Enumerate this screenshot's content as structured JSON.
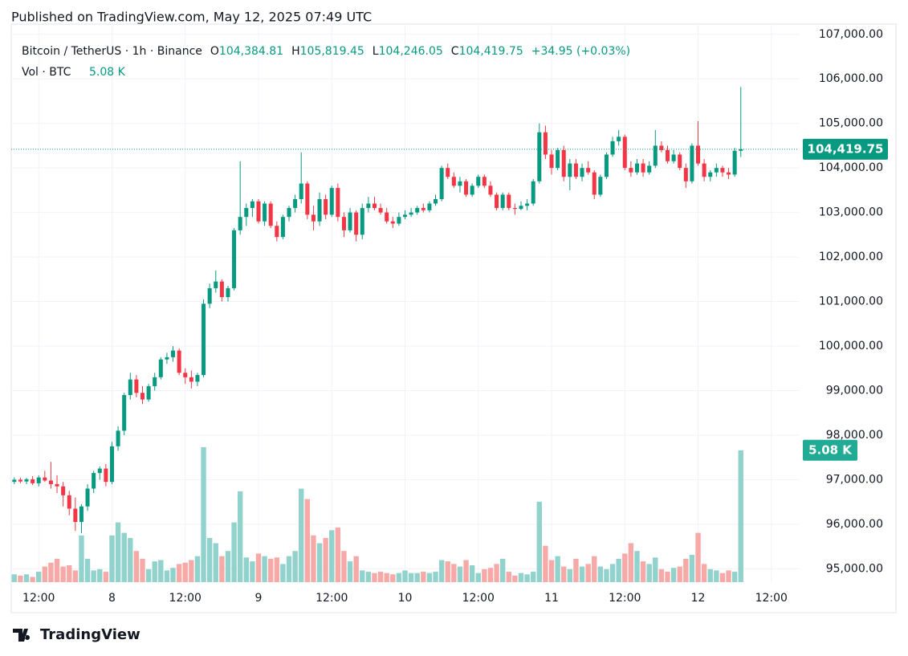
{
  "header": {
    "published": "Published on TradingView.com, May 12, 2025 07:49 UTC",
    "symbol": "Bitcoin / TetherUS · 1h · Binance",
    "fields": [
      {
        "key": "O",
        "value": "104,384.81"
      },
      {
        "key": "H",
        "value": "105,819.45"
      },
      {
        "key": "L",
        "value": "104,246.05"
      },
      {
        "key": "C",
        "value": "104,419.75"
      }
    ],
    "change": "+34.95 (+0.03%)",
    "volume_title": "Vol · BTC",
    "brand": "TradingView"
  },
  "chart_data": {
    "type": "candlestick",
    "up_color": "#089981",
    "down_color": "#f23645",
    "volume_up_color": "#92d2cc",
    "volume_down_color": "#f7a9a7",
    "grid": true,
    "xlim": [
      -0.5,
      128.5
    ],
    "xticks": [
      {
        "value": 4,
        "label": "12:00"
      },
      {
        "value": 16,
        "label": "8"
      },
      {
        "value": 28,
        "label": "12:00"
      },
      {
        "value": 40,
        "label": "9"
      },
      {
        "value": 52,
        "label": "12:00"
      },
      {
        "value": 64,
        "label": "10"
      },
      {
        "value": 76,
        "label": "12:00"
      },
      {
        "value": 88,
        "label": "11"
      },
      {
        "value": 100,
        "label": "12:00"
      },
      {
        "value": 112,
        "label": "12"
      },
      {
        "value": 124,
        "label": "12:00"
      }
    ],
    "ylim": [
      94700,
      107230
    ],
    "yticks": [
      {
        "value": 95000,
        "label": "95,000.00"
      },
      {
        "value": 96000,
        "label": "96,000.00"
      },
      {
        "value": 97000,
        "label": "97,000.00"
      },
      {
        "value": 98000,
        "label": "98,000.00"
      },
      {
        "value": 99000,
        "label": "99,000.00"
      },
      {
        "value": 100000,
        "label": "100,000.00"
      },
      {
        "value": 101000,
        "label": "101,000.00"
      },
      {
        "value": 102000,
        "label": "102,000.00"
      },
      {
        "value": 103000,
        "label": "103,000.00"
      },
      {
        "value": 104000,
        "label": "104,000.00"
      },
      {
        "value": 105000,
        "label": "105,000.00"
      },
      {
        "value": 106000,
        "label": "106,000.00"
      },
      {
        "value": 107000,
        "label": "107,000.00"
      }
    ],
    "y2lim": [
      0,
      21500
    ],
    "last_price": {
      "value": 104419.75,
      "label": "104,419.75"
    },
    "volume_label": {
      "value": 5080,
      "label": "5.08 K"
    },
    "ohlc": [
      [
        96950,
        97050,
        96900,
        97000
      ],
      [
        97000,
        97050,
        96920,
        96960
      ],
      [
        96960,
        97040,
        96900,
        97010
      ],
      [
        97010,
        97080,
        96880,
        96920
      ],
      [
        96920,
        97100,
        96850,
        97050
      ],
      [
        97050,
        97200,
        96950,
        96980
      ],
      [
        96980,
        97400,
        96800,
        96900
      ],
      [
        96900,
        97100,
        96700,
        96850
      ],
      [
        96850,
        96950,
        96400,
        96650
      ],
      [
        96650,
        96750,
        96200,
        96350
      ],
      [
        96350,
        96600,
        95850,
        96050
      ],
      [
        96050,
        96450,
        95800,
        96400
      ],
      [
        96400,
        96900,
        96300,
        96800
      ],
      [
        96800,
        97200,
        96700,
        97150
      ],
      [
        97150,
        97300,
        97000,
        97250
      ],
      [
        97250,
        97350,
        96850,
        96950
      ],
      [
        96950,
        97850,
        96900,
        97750
      ],
      [
        97750,
        98200,
        97650,
        98100
      ],
      [
        98100,
        98950,
        98000,
        98900
      ],
      [
        98900,
        99400,
        98800,
        99250
      ],
      [
        99250,
        99350,
        98850,
        98950
      ],
      [
        98950,
        99100,
        98700,
        98800
      ],
      [
        98800,
        99150,
        98750,
        99100
      ],
      [
        99100,
        99400,
        99000,
        99300
      ],
      [
        99300,
        99750,
        99250,
        99700
      ],
      [
        99700,
        99850,
        99600,
        99750
      ],
      [
        99750,
        100000,
        99650,
        99900
      ],
      [
        99900,
        99950,
        99350,
        99400
      ],
      [
        99400,
        99500,
        99150,
        99300
      ],
      [
        99300,
        99450,
        99050,
        99200
      ],
      [
        99200,
        99400,
        99100,
        99350
      ],
      [
        99350,
        101050,
        99300,
        100950
      ],
      [
        100950,
        101400,
        100850,
        101300
      ],
      [
        101300,
        101700,
        101200,
        101450
      ],
      [
        101450,
        101500,
        101000,
        101100
      ],
      [
        101100,
        101350,
        101000,
        101300
      ],
      [
        101300,
        102650,
        101250,
        102600
      ],
      [
        102600,
        104150,
        102500,
        102900
      ],
      [
        102900,
        103200,
        102700,
        103100
      ],
      [
        103100,
        103300,
        102900,
        103250
      ],
      [
        103250,
        103300,
        102750,
        102800
      ],
      [
        102800,
        103250,
        102700,
        103200
      ],
      [
        103200,
        103250,
        102650,
        102700
      ],
      [
        102700,
        102800,
        102350,
        102450
      ],
      [
        102450,
        102950,
        102400,
        102900
      ],
      [
        102900,
        103150,
        102800,
        103100
      ],
      [
        103100,
        103400,
        103000,
        103300
      ],
      [
        103300,
        104350,
        103200,
        103650
      ],
      [
        103650,
        103700,
        102850,
        102950
      ],
      [
        102950,
        103150,
        102600,
        102800
      ],
      [
        102800,
        103450,
        102700,
        103300
      ],
      [
        103300,
        103400,
        102850,
        102950
      ],
      [
        102950,
        103600,
        102900,
        103550
      ],
      [
        103550,
        103650,
        102800,
        102900
      ],
      [
        102900,
        103000,
        102450,
        102600
      ],
      [
        102600,
        103100,
        102550,
        103000
      ],
      [
        103000,
        103050,
        102350,
        102500
      ],
      [
        102500,
        103200,
        102400,
        103100
      ],
      [
        103100,
        103350,
        103000,
        103200
      ],
      [
        103200,
        103350,
        103050,
        103100
      ],
      [
        103100,
        103200,
        102950,
        103000
      ],
      [
        103000,
        103100,
        102750,
        102800
      ],
      [
        102800,
        102900,
        102650,
        102750
      ],
      [
        102750,
        103000,
        102700,
        102900
      ],
      [
        102900,
        103050,
        102850,
        102950
      ],
      [
        102950,
        103100,
        102900,
        103000
      ],
      [
        103000,
        103150,
        102950,
        103100
      ],
      [
        103100,
        103200,
        103000,
        103050
      ],
      [
        103050,
        103250,
        103000,
        103200
      ],
      [
        103200,
        103400,
        103150,
        103300
      ],
      [
        103300,
        104050,
        103250,
        104000
      ],
      [
        104000,
        104100,
        103750,
        103800
      ],
      [
        103800,
        103900,
        103550,
        103600
      ],
      [
        103600,
        103800,
        103450,
        103700
      ],
      [
        103700,
        103750,
        103350,
        103400
      ],
      [
        103400,
        103650,
        103350,
        103600
      ],
      [
        103600,
        103850,
        103550,
        103800
      ],
      [
        103800,
        103850,
        103550,
        103600
      ],
      [
        103600,
        103700,
        103350,
        103400
      ],
      [
        103400,
        103450,
        103050,
        103100
      ],
      [
        103100,
        103450,
        103050,
        103400
      ],
      [
        103400,
        103450,
        103050,
        103100
      ],
      [
        103100,
        103200,
        102950,
        103080
      ],
      [
        103080,
        103250,
        103050,
        103150
      ],
      [
        103150,
        103300,
        103050,
        103200
      ],
      [
        103200,
        103750,
        103150,
        103700
      ],
      [
        103700,
        105000,
        103650,
        104800
      ],
      [
        104800,
        104950,
        104200,
        104300
      ],
      [
        104300,
        104400,
        103850,
        104000
      ],
      [
        104000,
        104450,
        103950,
        104400
      ],
      [
        104400,
        104500,
        103700,
        103800
      ],
      [
        103800,
        104200,
        103500,
        104100
      ],
      [
        104100,
        104200,
        103750,
        103800
      ],
      [
        103800,
        104100,
        103700,
        104000
      ],
      [
        104000,
        104150,
        103850,
        103900
      ],
      [
        103900,
        103950,
        103300,
        103400
      ],
      [
        103400,
        103850,
        103350,
        103800
      ],
      [
        103800,
        104350,
        103750,
        104300
      ],
      [
        104300,
        104700,
        104250,
        104600
      ],
      [
        104600,
        104850,
        104500,
        104700
      ],
      [
        104700,
        104750,
        103950,
        104000
      ],
      [
        104000,
        104150,
        103800,
        103900
      ],
      [
        103900,
        104200,
        103850,
        104100
      ],
      [
        104100,
        104200,
        103800,
        103900
      ],
      [
        103900,
        104150,
        103850,
        104050
      ],
      [
        104050,
        104850,
        104000,
        104500
      ],
      [
        104500,
        104600,
        104350,
        104400
      ],
      [
        104400,
        104500,
        104100,
        104150
      ],
      [
        104150,
        104400,
        104100,
        104300
      ],
      [
        104300,
        104350,
        103950,
        104000
      ],
      [
        104000,
        104100,
        103550,
        103700
      ],
      [
        103700,
        104550,
        103650,
        104500
      ],
      [
        104500,
        105050,
        104050,
        104100
      ],
      [
        104100,
        104200,
        103700,
        103800
      ],
      [
        103800,
        103950,
        103700,
        103900
      ],
      [
        103900,
        104100,
        103800,
        104000
      ],
      [
        104000,
        104050,
        103800,
        103900
      ],
      [
        103900,
        104000,
        103750,
        103850
      ],
      [
        103850,
        104450,
        103800,
        104385
      ],
      [
        104384.81,
        105819.45,
        104246.05,
        104419.75
      ]
    ],
    "volume": [
      300,
      250,
      300,
      200,
      400,
      600,
      750,
      900,
      600,
      650,
      450,
      1800,
      900,
      450,
      500,
      400,
      1800,
      2300,
      1900,
      1700,
      1200,
      900,
      500,
      800,
      850,
      450,
      550,
      700,
      750,
      850,
      1000,
      5200,
      1700,
      1500,
      1000,
      1200,
      2300,
      3500,
      950,
      800,
      1100,
      1000,
      900,
      950,
      700,
      1000,
      1200,
      3600,
      3200,
      1800,
      1500,
      1700,
      2000,
      2100,
      1200,
      800,
      1000,
      450,
      400,
      350,
      400,
      350,
      300,
      350,
      450,
      350,
      350,
      400,
      350,
      400,
      850,
      800,
      700,
      600,
      850,
      650,
      350,
      500,
      550,
      700,
      900,
      400,
      250,
      350,
      300,
      400,
      3100,
      1400,
      850,
      1000,
      600,
      500,
      900,
      600,
      700,
      1000,
      600,
      500,
      700,
      900,
      1100,
      1500,
      1200,
      800,
      700,
      950,
      500,
      400,
      550,
      600,
      900,
      1050,
      1900,
      700,
      500,
      450,
      350,
      450,
      400,
      5080
    ]
  }
}
